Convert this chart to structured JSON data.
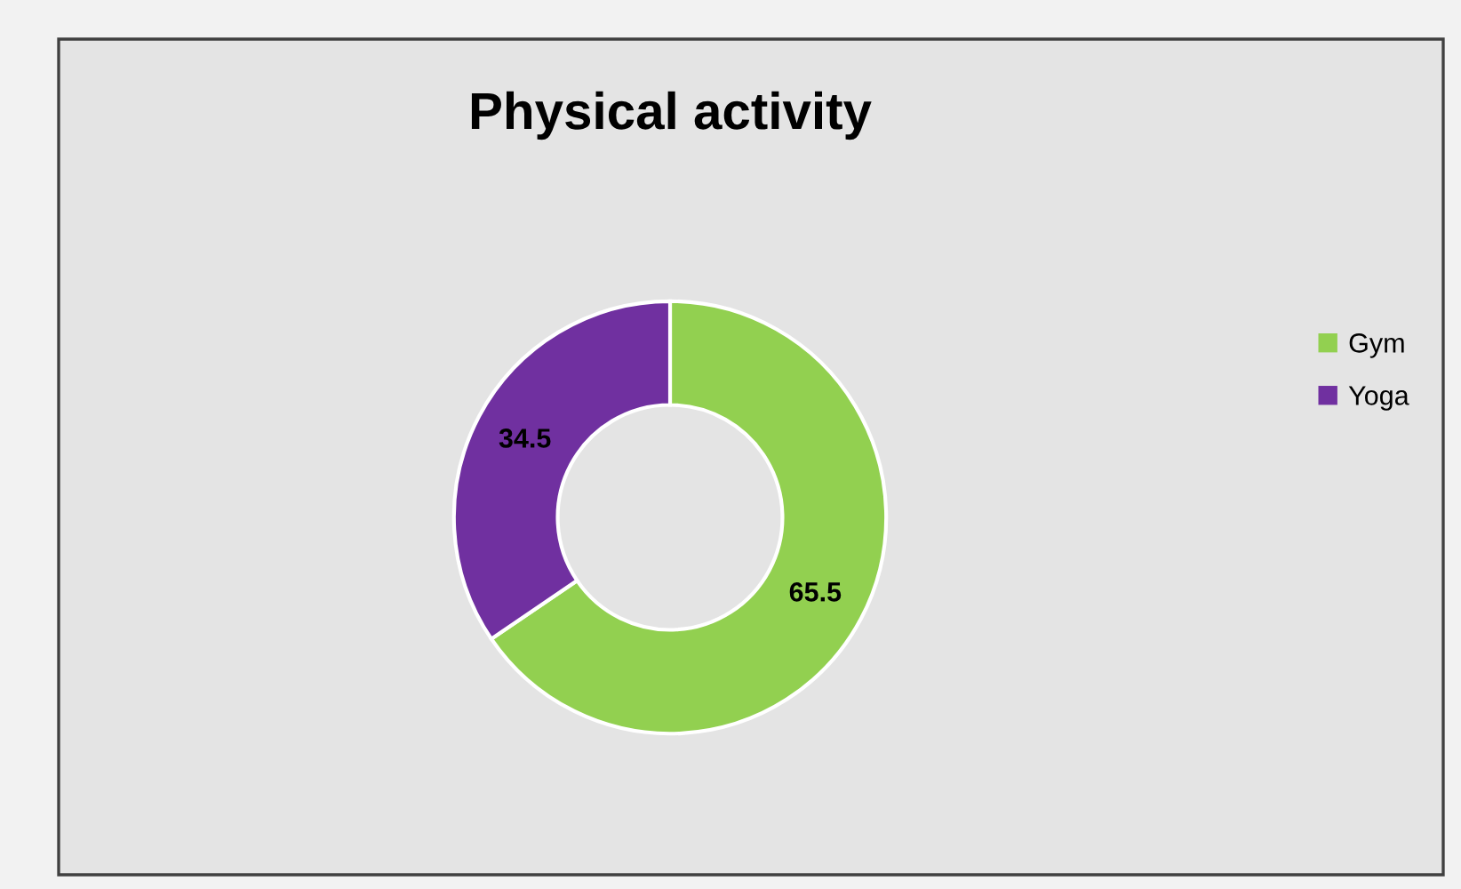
{
  "chart_data": {
    "type": "donut",
    "title": "Physical activity",
    "categories": [
      "Gym",
      "Yoga"
    ],
    "values": [
      65.5,
      34.5
    ],
    "colors": [
      "#92d050",
      "#7030a0"
    ],
    "data_labels": true,
    "legend": "right"
  }
}
